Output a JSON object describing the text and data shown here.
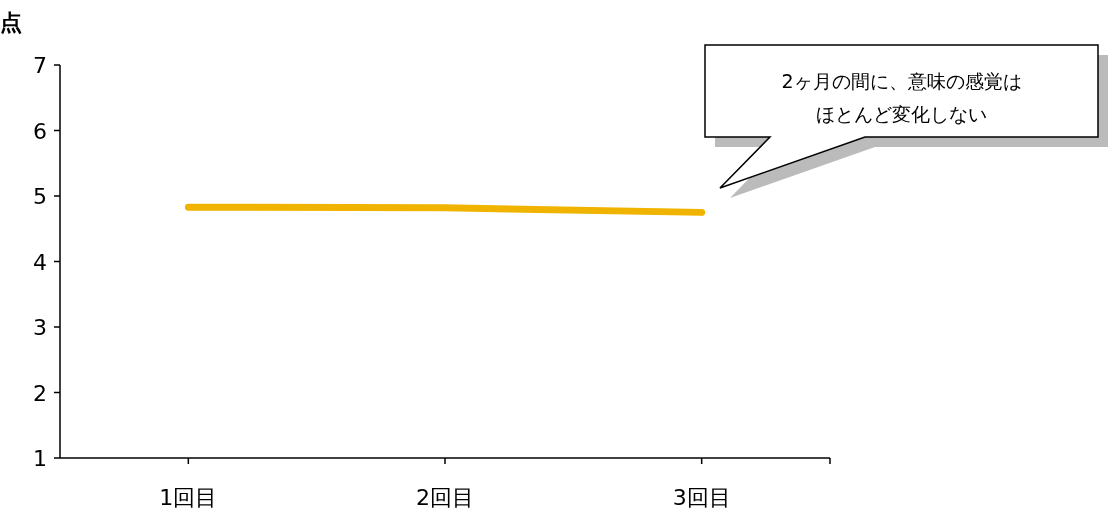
{
  "chart_data": {
    "type": "line",
    "ylabel": "点",
    "categories": [
      "1回目",
      "2回目",
      "3回目"
    ],
    "series": [
      {
        "color": "#f0b400",
        "values": [
          4.83,
          4.82,
          4.75
        ]
      }
    ],
    "ylim": [
      1,
      7
    ],
    "yticks": [
      1,
      2,
      3,
      4,
      5,
      6,
      7
    ],
    "grid": false,
    "marker": "none",
    "line_style": "solid",
    "annotations": [
      "2ヶ月の間に、意味の感覚はほとんど変化しない"
    ]
  }
}
